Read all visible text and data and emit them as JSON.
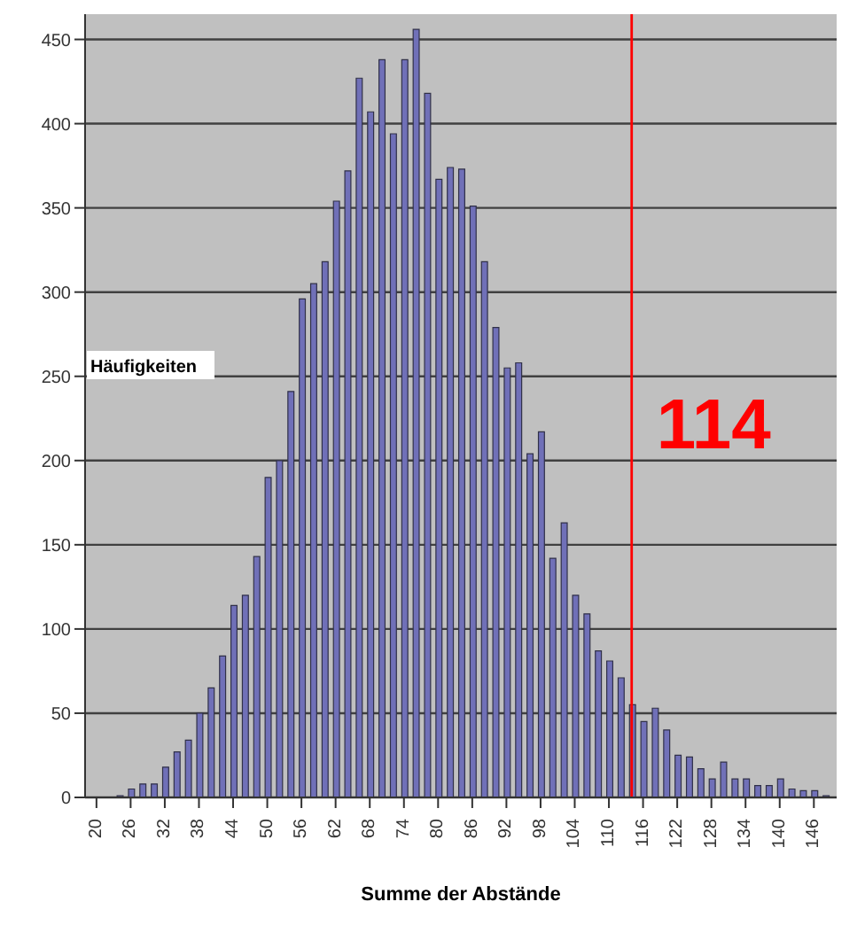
{
  "chart_data": {
    "type": "bar",
    "xlabel": "Summe der Abstände",
    "ylabel": "Häufigkeiten",
    "x": [
      20,
      22,
      24,
      26,
      28,
      30,
      32,
      34,
      36,
      38,
      40,
      42,
      44,
      46,
      48,
      50,
      52,
      54,
      56,
      58,
      60,
      62,
      64,
      66,
      68,
      70,
      72,
      74,
      76,
      78,
      80,
      82,
      84,
      86,
      88,
      90,
      92,
      94,
      96,
      98,
      100,
      102,
      104,
      106,
      108,
      110,
      112,
      114,
      116,
      118,
      120,
      122,
      124,
      126,
      128,
      130,
      132,
      134,
      136,
      138,
      140,
      142,
      144,
      146,
      148
    ],
    "values": [
      0,
      0,
      1,
      5,
      8,
      8,
      18,
      27,
      34,
      50,
      65,
      84,
      114,
      120,
      143,
      190,
      200,
      241,
      296,
      305,
      318,
      354,
      372,
      427,
      407,
      438,
      394,
      438,
      456,
      418,
      367,
      374,
      373,
      351,
      318,
      279,
      255,
      258,
      204,
      217,
      142,
      163,
      120,
      109,
      87,
      81,
      71,
      55,
      45,
      53,
      40,
      25,
      24,
      17,
      11,
      21,
      11,
      11,
      7,
      7,
      11,
      5,
      4,
      4,
      1
    ],
    "color": "#7070b8",
    "xlim": [
      18,
      150
    ],
    "xticks": [
      20,
      26,
      32,
      38,
      44,
      50,
      56,
      62,
      68,
      74,
      80,
      86,
      92,
      98,
      104,
      110,
      116,
      122,
      128,
      134,
      140,
      146
    ],
    "ylim": [
      0,
      465
    ],
    "yticks": [
      0,
      50,
      100,
      150,
      200,
      250,
      300,
      350,
      400,
      450
    ],
    "grid": "y",
    "ref_lines": [
      {
        "axis": "x",
        "value": 114,
        "label": "114",
        "color": "#ff0000"
      }
    ]
  }
}
